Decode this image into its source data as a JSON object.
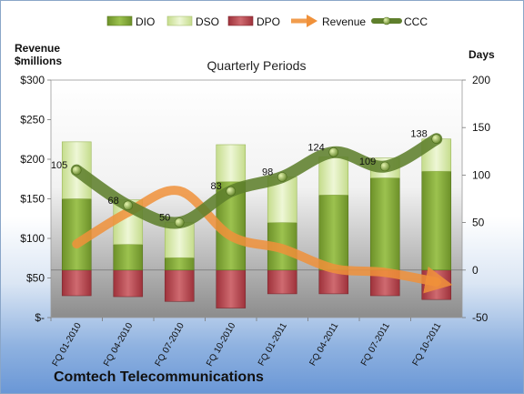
{
  "chart_data": {
    "type": "bar",
    "title": "Quarterly Periods",
    "y_left_label_line1": "Revenue",
    "y_left_label_line2": "$millions",
    "y_right_label": "Days",
    "categories": [
      "FQ 01-2010",
      "FQ 04-2010",
      "FQ 07-2010",
      "FQ 10-2010",
      "FQ 01-2011",
      "FQ 04-2011",
      "FQ 07-2011",
      "FQ 10-2011"
    ],
    "y_left_ticks": [
      "$300",
      "$250",
      "$200",
      "$150",
      "$100",
      "$50",
      "$-"
    ],
    "y_right_ticks": [
      "200",
      "150",
      "100",
      "50",
      "0",
      "-50"
    ],
    "ylim_right": [
      -50,
      200
    ],
    "ylim_left": [
      0,
      300
    ],
    "legend": [
      "DIO",
      "DSO",
      "DPO",
      "Revenue",
      "CCC"
    ],
    "legend_position": "top",
    "series": [
      {
        "name": "DIO",
        "axis": "right",
        "values": [
          75,
          27,
          13,
          93,
          50,
          79,
          97,
          104
        ]
      },
      {
        "name": "DSO",
        "axis": "right",
        "values": [
          60,
          47,
          37,
          39,
          48,
          40,
          21,
          34
        ]
      },
      {
        "name": "DPO",
        "axis": "right",
        "values": [
          -27,
          -28,
          -33,
          -40,
          -25,
          -25,
          -27,
          -31
        ]
      },
      {
        "name": "Revenue",
        "axis": "left",
        "values": [
          93,
          133,
          160,
          103,
          87,
          62,
          57,
          45
        ]
      },
      {
        "name": "CCC",
        "axis": "right",
        "values": [
          105,
          68,
          50,
          83,
          98,
          124,
          109,
          138
        ],
        "labels": [
          "105",
          "68",
          "50",
          "83",
          "98",
          "124",
          "109",
          "138"
        ]
      }
    ],
    "colors": {
      "DIO": "#7fa336",
      "DSO": "#d9ebb0",
      "DPO": "#b8454e",
      "Revenue": "#f0913a",
      "CCC": "#6f8f36"
    },
    "grid": false
  },
  "footer": {
    "company": "Comtech Telecommunications"
  }
}
